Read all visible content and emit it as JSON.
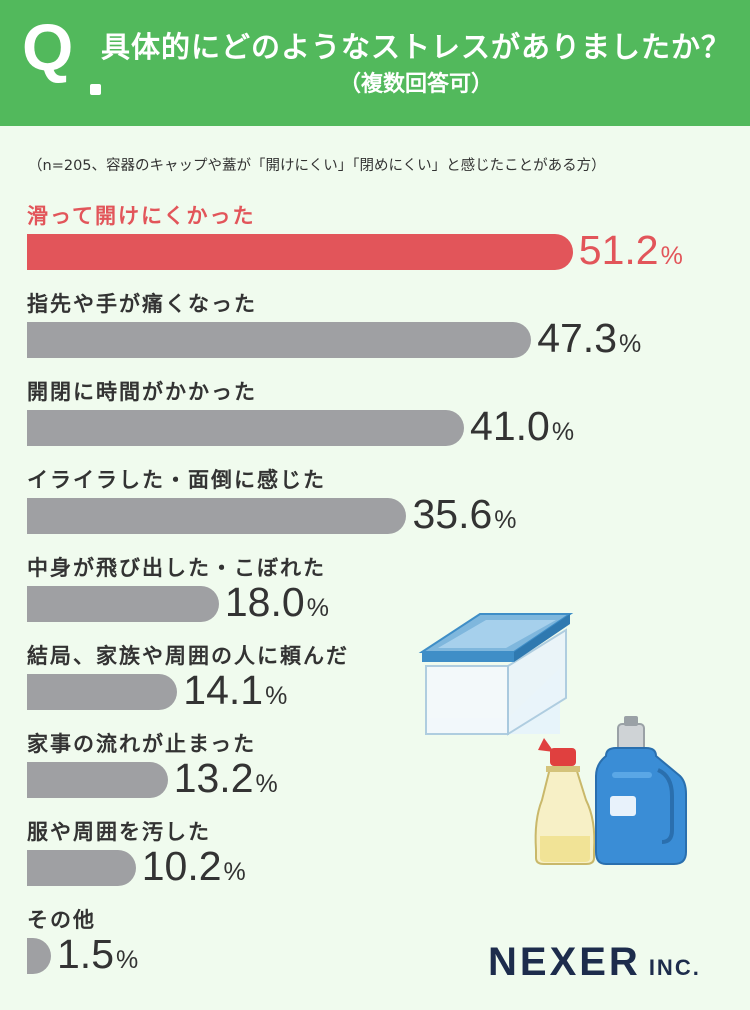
{
  "header": {
    "q_mark": "Q",
    "question": "具体的にどのようなストレスがありましたか？",
    "subtitle": "（複数回答可）"
  },
  "note": "（n=205、容器のキャップや蓋が「開けにくい」「閉めにくい」と感じたことがある方）",
  "chart_data": {
    "type": "bar",
    "orientation": "horizontal",
    "title": "具体的にどのようなストレスがありましたか？",
    "categories": [
      "滑って開けにくかった",
      "指先や手が痛くなった",
      "開閉に時間がかかった",
      "イライラした・面倒に感じた",
      "中身が飛び出した・こぼれた",
      "結局、家族や周囲の人に頼んだ",
      "家事の流れが止まった",
      "服や周囲を汚した",
      "その他"
    ],
    "values": [
      51.2,
      47.3,
      41.0,
      35.6,
      18.0,
      14.1,
      13.2,
      10.2,
      1.5
    ],
    "value_labels": [
      "51.2",
      "47.3",
      "41.0",
      "35.6",
      "18.0",
      "14.1",
      "13.2",
      "10.2",
      "1.5"
    ],
    "unit": "%",
    "highlight_index": 0,
    "colors": {
      "highlight": "#e2555a",
      "default": "#9fa0a3",
      "header": "#52b95c",
      "background": "#f0fbee"
    }
  },
  "logo": {
    "main": "NEXER",
    "suffix": "INC."
  }
}
